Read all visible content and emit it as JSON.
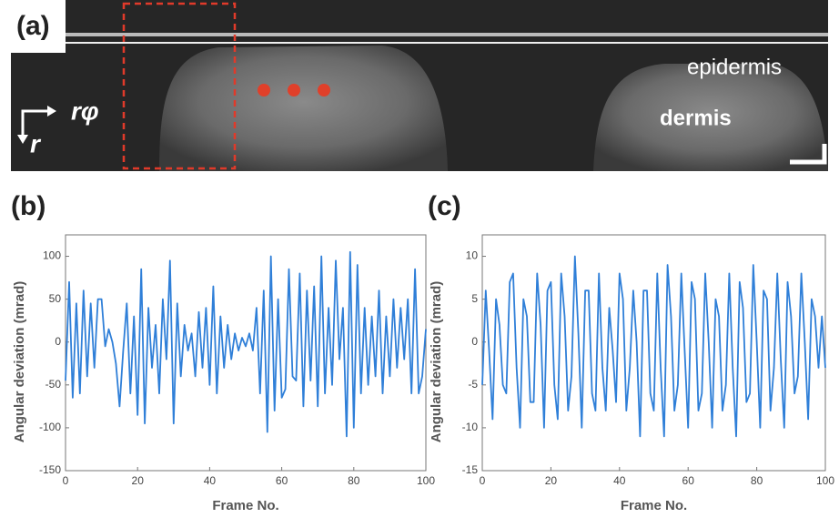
{
  "panel_a": {
    "label": "(a)",
    "annotations": [
      "epidermis",
      "dermis"
    ],
    "axis_labels": [
      "rφ",
      "r"
    ]
  },
  "chart_data": [
    {
      "type": "line",
      "panel_label": "(b)",
      "xlabel": "Frame No.",
      "ylabel": "Angular deviation (mrad)",
      "x": [
        0,
        1,
        2,
        3,
        4,
        5,
        6,
        7,
        8,
        9,
        10,
        11,
        12,
        13,
        14,
        15,
        16,
        17,
        18,
        19,
        20,
        21,
        22,
        23,
        24,
        25,
        26,
        27,
        28,
        29,
        30,
        31,
        32,
        33,
        34,
        35,
        36,
        37,
        38,
        39,
        40,
        41,
        42,
        43,
        44,
        45,
        46,
        47,
        48,
        49,
        50,
        51,
        52,
        53,
        54,
        55,
        56,
        57,
        58,
        59,
        60,
        61,
        62,
        63,
        64,
        65,
        66,
        67,
        68,
        69,
        70,
        71,
        72,
        73,
        74,
        75,
        76,
        77,
        78,
        79,
        80,
        81,
        82,
        83,
        84,
        85,
        86,
        87,
        88,
        89,
        90,
        91,
        92,
        93,
        94,
        95,
        96,
        97,
        98,
        99,
        100
      ],
      "series": [
        {
          "color": "#2f7fd8",
          "values": [
            -45,
            70,
            -65,
            45,
            -60,
            60,
            -40,
            45,
            -30,
            50,
            50,
            -5,
            15,
            0,
            -25,
            -75,
            -10,
            45,
            -60,
            30,
            -85,
            85,
            -95,
            40,
            -30,
            20,
            -60,
            50,
            -20,
            95,
            -95,
            45,
            -40,
            20,
            -10,
            10,
            -40,
            35,
            -30,
            40,
            -50,
            65,
            -60,
            30,
            -30,
            20,
            -20,
            10,
            -10,
            5,
            -5,
            10,
            -10,
            40,
            -60,
            60,
            -105,
            100,
            -80,
            50,
            -65,
            -55,
            85,
            -40,
            -45,
            80,
            -75,
            60,
            -45,
            65,
            -75,
            100,
            -60,
            40,
            -50,
            95,
            -20,
            40,
            -110,
            105,
            -100,
            90,
            -60,
            40,
            -50,
            30,
            -40,
            60,
            -60,
            30,
            -40,
            50,
            -30,
            40,
            -20,
            50,
            -60,
            85,
            -60,
            -40,
            15
          ]
        }
      ],
      "xlim": [
        0,
        100
      ],
      "xticks": [
        0,
        20,
        40,
        60,
        80,
        100
      ],
      "ylim": [
        -150,
        125
      ],
      "yticks": [
        -150,
        -100,
        -50,
        0,
        50,
        100
      ]
    },
    {
      "type": "line",
      "panel_label": "(c)",
      "xlabel": "Frame No.",
      "ylabel": "Angular deviation (mrad)",
      "x": [
        0,
        1,
        2,
        3,
        4,
        5,
        6,
        7,
        8,
        9,
        10,
        11,
        12,
        13,
        14,
        15,
        16,
        17,
        18,
        19,
        20,
        21,
        22,
        23,
        24,
        25,
        26,
        27,
        28,
        29,
        30,
        31,
        32,
        33,
        34,
        35,
        36,
        37,
        38,
        39,
        40,
        41,
        42,
        43,
        44,
        45,
        46,
        47,
        48,
        49,
        50,
        51,
        52,
        53,
        54,
        55,
        56,
        57,
        58,
        59,
        60,
        61,
        62,
        63,
        64,
        65,
        66,
        67,
        68,
        69,
        70,
        71,
        72,
        73,
        74,
        75,
        76,
        77,
        78,
        79,
        80,
        81,
        82,
        83,
        84,
        85,
        86,
        87,
        88,
        89,
        90,
        91,
        92,
        93,
        94,
        95,
        96,
        97,
        98,
        99,
        100
      ],
      "series": [
        {
          "color": "#2f7fd8",
          "values": [
            -5,
            6,
            -1,
            -9,
            5,
            2,
            -5,
            -6,
            7,
            8,
            -3,
            -10,
            5,
            3,
            -7,
            -7,
            8,
            2,
            -10,
            6,
            7,
            -5,
            -9,
            8,
            3,
            -8,
            -4,
            10,
            1,
            -10,
            6,
            6,
            -6,
            -8,
            8,
            -3,
            -8,
            4,
            -1,
            -7,
            8,
            5,
            -8,
            -3,
            6,
            0,
            -11,
            6,
            6,
            -6,
            -8,
            8,
            -3,
            -11,
            9,
            3,
            -8,
            -5,
            8,
            -1,
            -10,
            7,
            5,
            -8,
            -6,
            8,
            0,
            -10,
            5,
            3,
            -8,
            -5,
            8,
            -3,
            -11,
            7,
            4,
            -7,
            -6,
            9,
            0,
            -10,
            6,
            5,
            -8,
            -3,
            8,
            -2,
            -10,
            7,
            3,
            -6,
            -4,
            8,
            0,
            -9,
            5,
            3,
            -3,
            3,
            -3
          ]
        }
      ],
      "xlim": [
        0,
        100
      ],
      "xticks": [
        0,
        20,
        40,
        60,
        80,
        100
      ],
      "ylim": [
        -15,
        12.5
      ],
      "yticks": [
        -15,
        -10,
        -5,
        0,
        5,
        10
      ]
    }
  ]
}
